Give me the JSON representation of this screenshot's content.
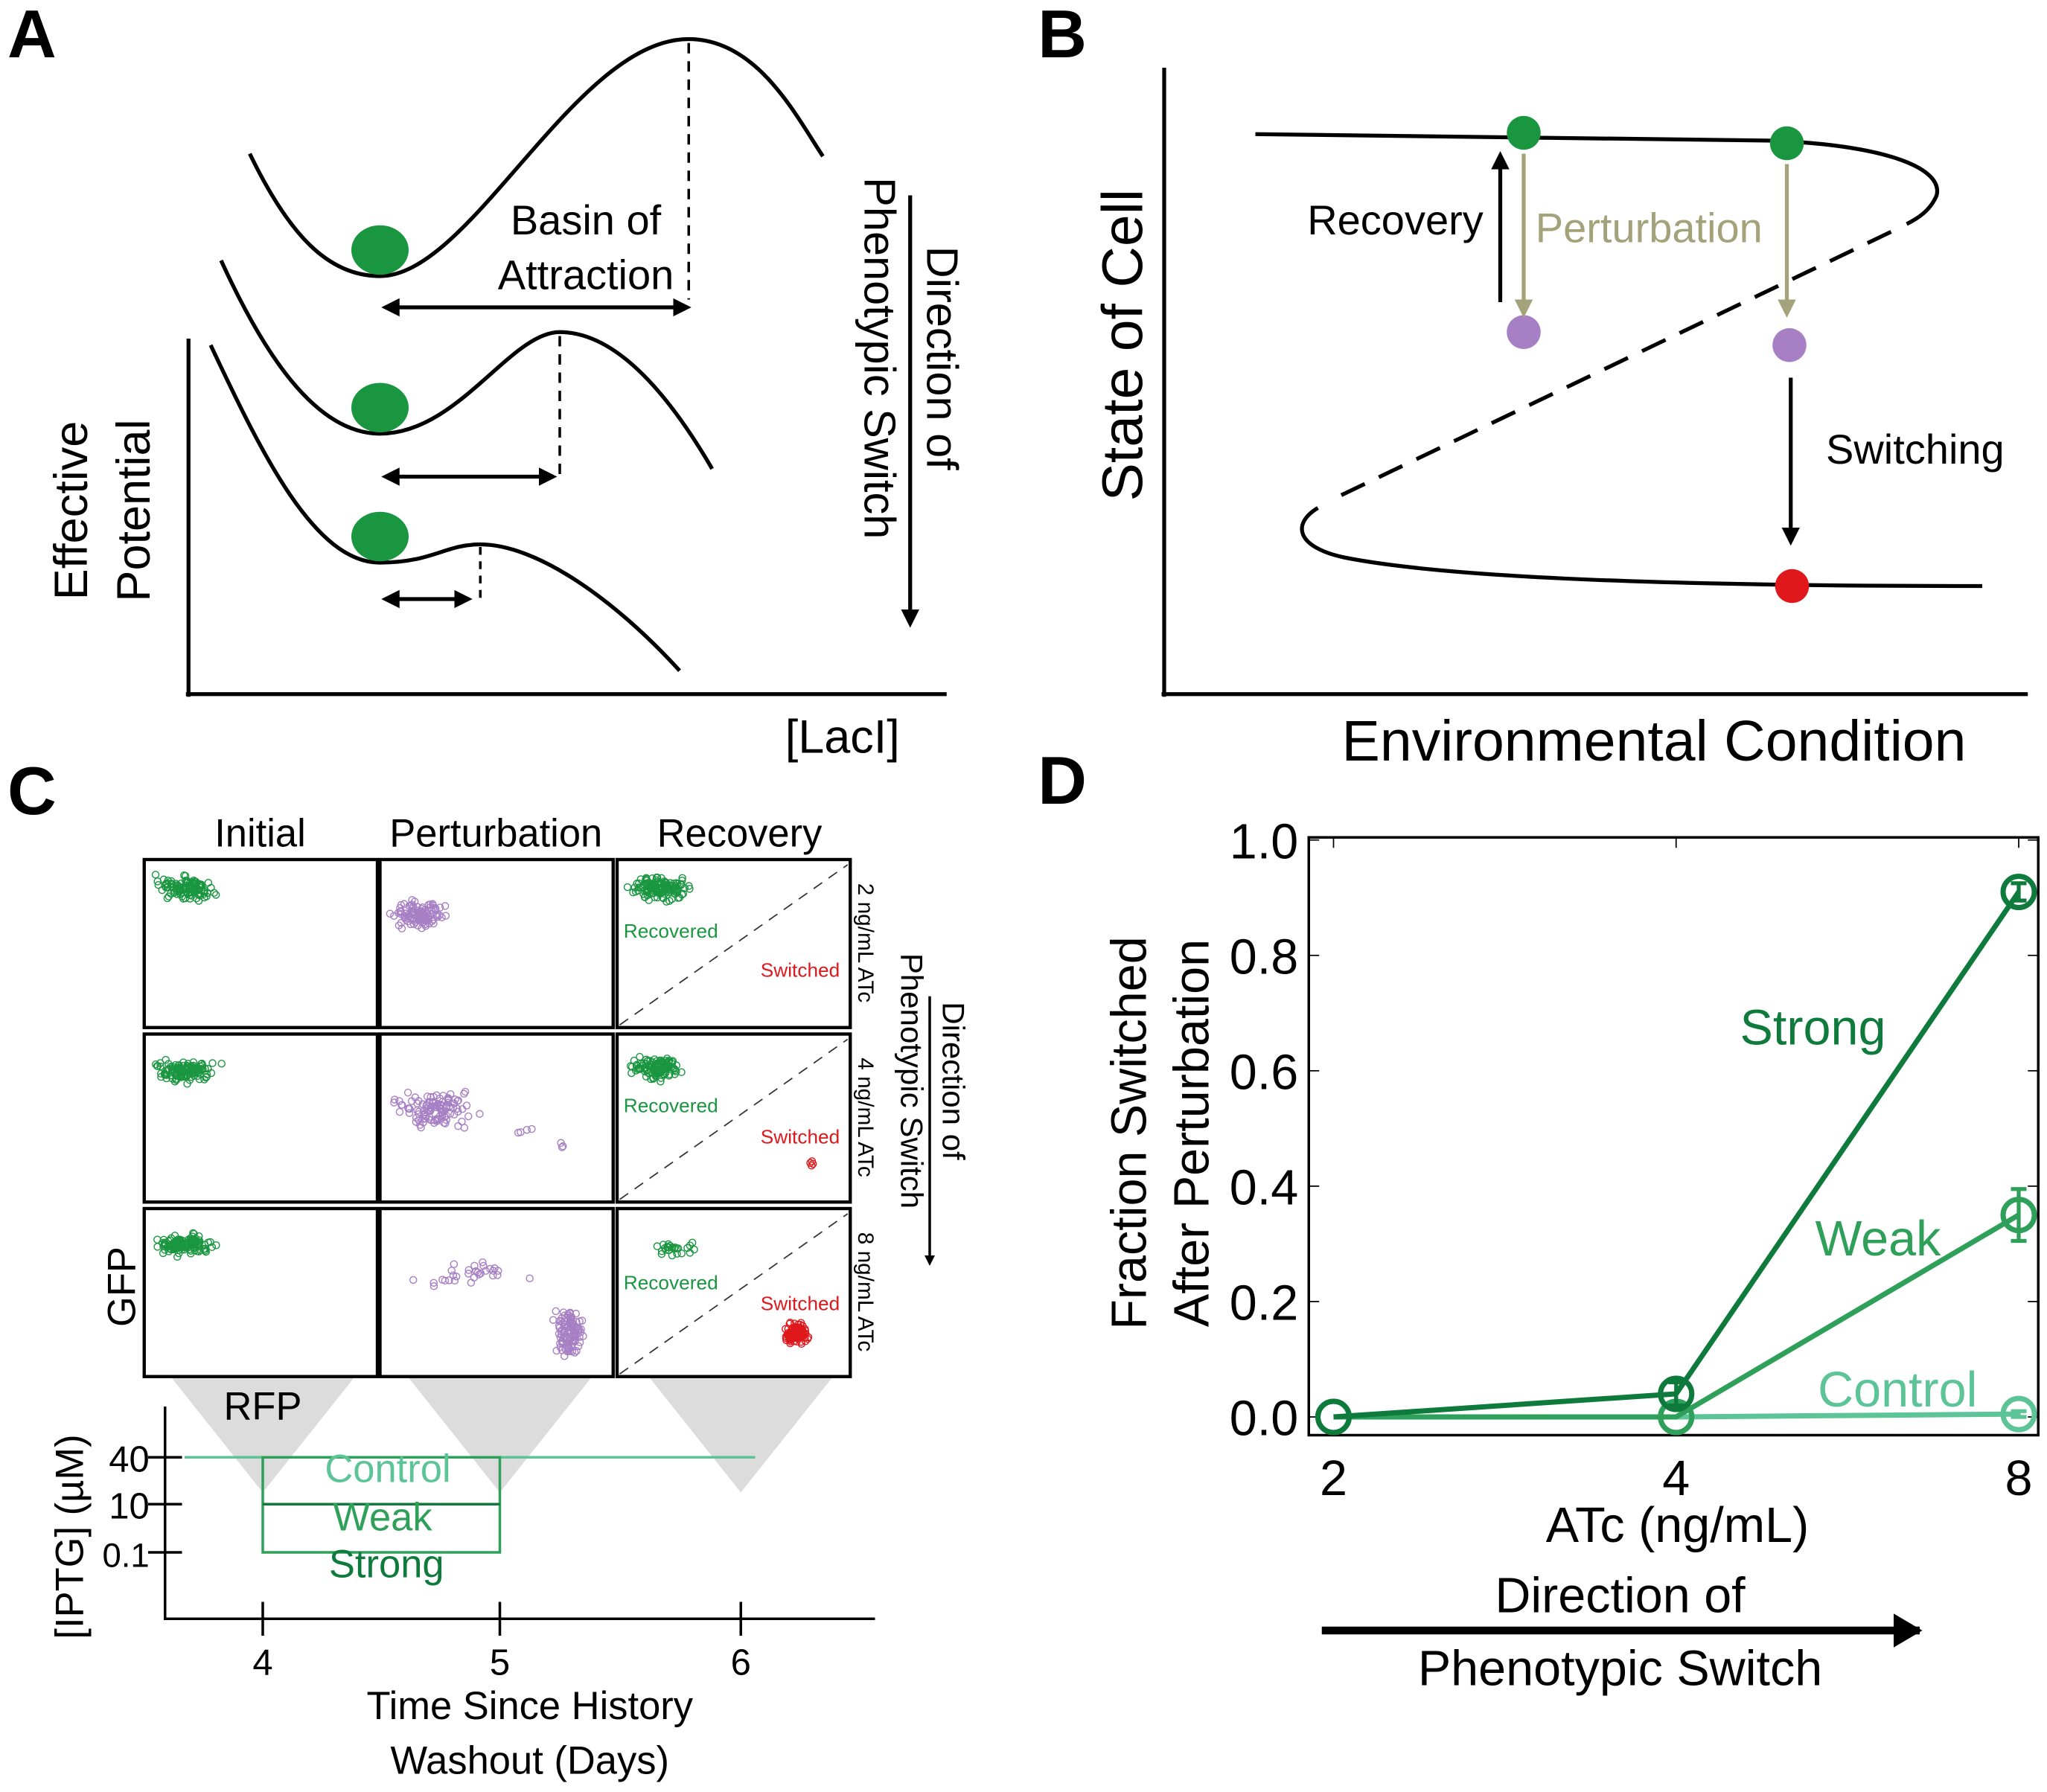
{
  "panels": {
    "a": {
      "letter": "A",
      "basin_label_1": "Basin of",
      "basin_label_2": "Attraction",
      "direction_1": "Direction of",
      "direction_2": "Phenotypic Switch",
      "ylabel_1": "Effective",
      "ylabel_2": "Potential",
      "xlabel": "[LacI]"
    },
    "b": {
      "letter": "B",
      "ylabel": "State of Cell",
      "xlabel": "Environmental Condition",
      "recovery": "Recovery",
      "perturbation": "Perturbation",
      "switching": "Switching"
    },
    "c": {
      "letter": "C",
      "columns": [
        "Initial",
        "Perturbation",
        "Recovery"
      ],
      "rows": [
        "2 ng/mL ATc",
        "4 ng/mL ATc",
        "8 ng/mL ATc"
      ],
      "recovered": "Recovered",
      "switched": "Switched",
      "gfp": "GFP",
      "rfp": "RFP",
      "direction_1": "Direction of",
      "direction_2": "Phenotypic Switch",
      "timeline": {
        "ylabel": "[IPTG] (µM)",
        "yticks": [
          "40",
          "10",
          "0.1"
        ],
        "xticks": [
          "4",
          "5",
          "6"
        ],
        "xlabel_1": "Time Since History",
        "xlabel_2": "Washout (Days)",
        "conditions": [
          "Control",
          "Weak",
          "Strong"
        ]
      }
    },
    "d": {
      "letter": "D",
      "direction_1": "Direction of",
      "direction_2": "Phenotypic Switch"
    }
  },
  "colors": {
    "strong": "#0e7a3c",
    "weak": "#2ea05a",
    "control": "#5cc497",
    "stable_state": "#1a9641",
    "perturbed": "#a77fc4",
    "switched": "#e0181b",
    "perturbation_arrow": "#a3a27a"
  },
  "chart_data": {
    "type": "line",
    "title": "",
    "xlabel": "ATc (ng/mL)",
    "ylabel_1": "Fraction Switched",
    "ylabel_2": "After Perturbation",
    "x": [
      2,
      4,
      8
    ],
    "x_scale": "log2",
    "xticks": [
      "2",
      "4",
      "8"
    ],
    "ylim": [
      -0.03,
      1.0
    ],
    "yticks": [
      "0.0",
      "0.2",
      "0.4",
      "0.6",
      "0.8",
      "1.0"
    ],
    "series": [
      {
        "name": "Strong",
        "color": "#0e7a3c",
        "values": [
          0.0,
          0.04,
          0.91
        ],
        "errors": [
          0.0,
          0.02,
          0.015
        ]
      },
      {
        "name": "Weak",
        "color": "#2ea05a",
        "values": [
          0.0,
          0.0,
          0.35
        ],
        "errors": [
          0.0,
          0.0,
          0.045
        ]
      },
      {
        "name": "Control",
        "color": "#5cc497",
        "values": [
          0.0,
          0.0,
          0.005
        ],
        "errors": [
          0.0,
          0.0,
          0.005
        ]
      }
    ],
    "legend": "inline-labels"
  }
}
